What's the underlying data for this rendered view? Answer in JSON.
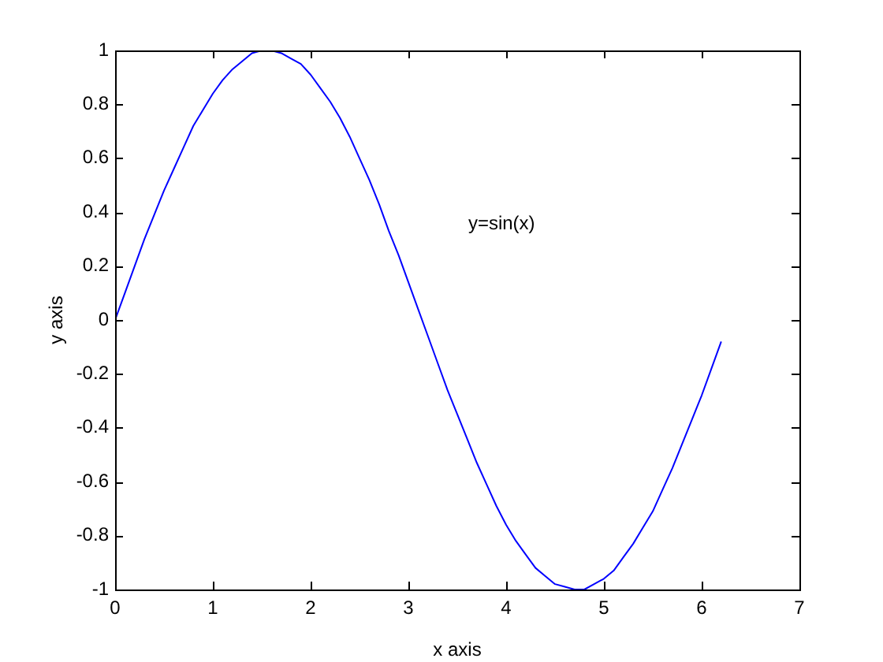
{
  "chart_data": {
    "type": "line",
    "xlabel": "x axis",
    "ylabel": "y axis",
    "annotations": [
      "y=sin(x)"
    ],
    "x": [
      0,
      0.1,
      0.2,
      0.3,
      0.4,
      0.5,
      0.6,
      0.7,
      0.8,
      0.9,
      1,
      1.1,
      1.2,
      1.3,
      1.4,
      1.5,
      1.6,
      1.7,
      1.8,
      1.9,
      2,
      2.1,
      2.2,
      2.3,
      2.4,
      2.5,
      2.6,
      2.7,
      2.8,
      2.9,
      3,
      3.1,
      3.2,
      3.3,
      3.4,
      3.5,
      3.6,
      3.7,
      3.8,
      3.9,
      4,
      4.1,
      4.2,
      4.3,
      4.4,
      4.5,
      4.6,
      4.7,
      4.8,
      4.9,
      5,
      5.1,
      5.2,
      5.3,
      5.4,
      5.5,
      5.6,
      5.7,
      5.8,
      5.9,
      6,
      6.1,
      6.2
    ],
    "series": [
      {
        "color": "#0000ff",
        "values": [
          0,
          0.1,
          0.2,
          0.3,
          0.39,
          0.48,
          0.56,
          0.64,
          0.72,
          0.78,
          0.84,
          0.89,
          0.93,
          0.96,
          0.99,
          1,
          1,
          0.99,
          0.97,
          0.95,
          0.91,
          0.86,
          0.81,
          0.75,
          0.68,
          0.6,
          0.52,
          0.43,
          0.33,
          0.24,
          0.14,
          0.04,
          -0.06,
          -0.16,
          -0.26,
          -0.35,
          -0.44,
          -0.53,
          -0.61,
          -0.69,
          -0.76,
          -0.82,
          -0.87,
          -0.92,
          -0.95,
          -0.98,
          -0.99,
          -1,
          -1,
          -0.98,
          -0.96,
          -0.93,
          -0.88,
          -0.83,
          -0.77,
          -0.71,
          -0.63,
          -0.55,
          -0.46,
          -0.37,
          -0.28,
          -0.18,
          -0.08
        ]
      }
    ],
    "xlim": [
      0,
      7
    ],
    "ylim": [
      -1,
      1
    ],
    "xticks": [
      0,
      1,
      2,
      3,
      4,
      5,
      6,
      7
    ],
    "yticks": [
      -1,
      -0.8,
      -0.6,
      -0.4,
      -0.2,
      0,
      0.2,
      0.4,
      0.6,
      0.8,
      1
    ],
    "grid": false,
    "legend": false,
    "marker": "none",
    "line_style": "solid"
  }
}
